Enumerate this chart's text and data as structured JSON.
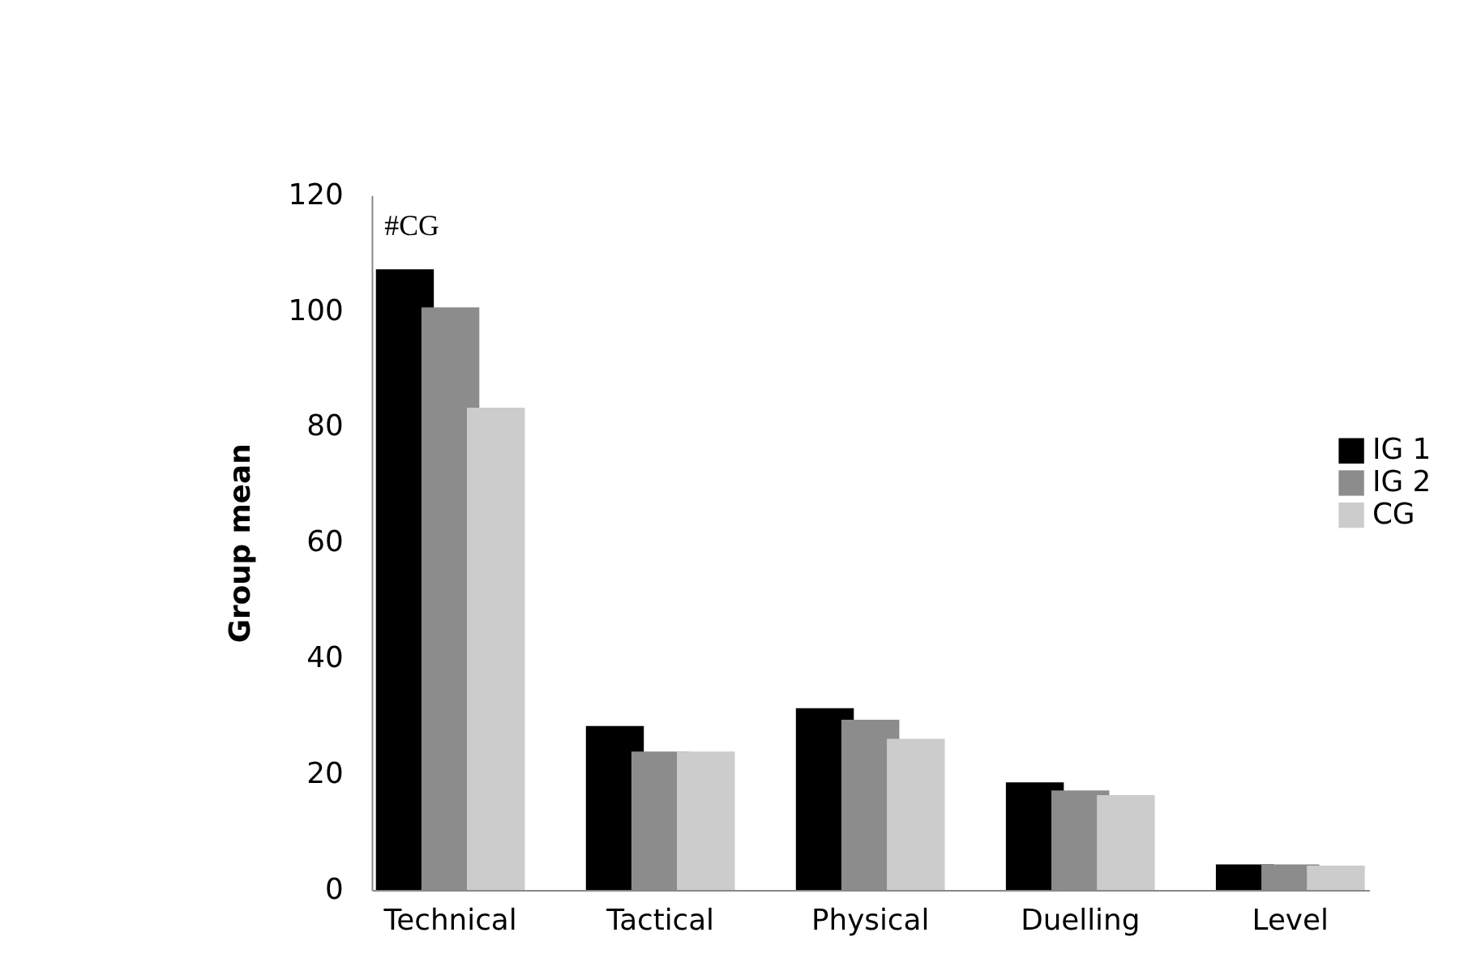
{
  "chart_data": {
    "type": "bar",
    "ylabel": "Group mean",
    "categories": [
      "Technical",
      "Tactical",
      "Physical",
      "Duelling",
      "Level"
    ],
    "series": [
      {
        "name": "IG 1",
        "color": "#000000",
        "values": [
          107.2,
          28.3,
          31.4,
          18.6,
          4.4
        ]
      },
      {
        "name": "IG 2",
        "color": "#8c8c8c",
        "values": [
          100.6,
          23.9,
          29.4,
          17.2,
          4.4
        ]
      },
      {
        "name": "CG",
        "color": "#cccccc",
        "values": [
          83.3,
          23.9,
          26.1,
          16.4,
          4.2
        ]
      }
    ],
    "ylim": [
      0,
      120
    ],
    "yticks": [
      0,
      20,
      40,
      60,
      80,
      100,
      120
    ],
    "annotations": [
      "#CG"
    ],
    "grid": false,
    "legend": "right"
  }
}
